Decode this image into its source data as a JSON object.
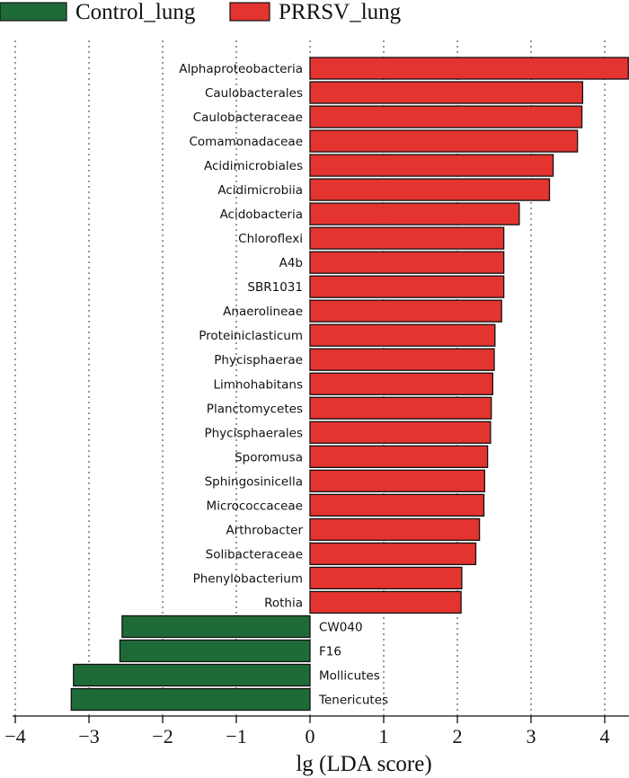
{
  "chart_data": {
    "type": "bar",
    "orientation": "horizontal",
    "title": "",
    "xlabel": "lg (LDA score)",
    "ylabel": "",
    "xlim": [
      -4,
      4.3
    ],
    "xticks": [
      -4,
      -3,
      -2,
      -1,
      0,
      1,
      2,
      3,
      4
    ],
    "xtick_labels": [
      "−4",
      "−3",
      "−2",
      "−1",
      "0",
      "1",
      "2",
      "3",
      "4"
    ],
    "grid": true,
    "legend_position": "top-left",
    "series": [
      {
        "name": "Control_lung",
        "color": "#1f6b38"
      },
      {
        "name": "PRRSV_lung",
        "color": "#e33430"
      }
    ],
    "categories": [
      "Alphaproteobacteria",
      "Caulobacterales",
      "Caulobacteraceae",
      "Comamonadaceae",
      "Acidimicrobiales",
      "Acidimicrobiia",
      "Acidobacteria",
      "Chloroflexi",
      "A4b",
      "SBR1031",
      "Anaerolineae",
      "Proteiniclasticum",
      "Phycisphaerae",
      "Limnohabitans",
      "Planctomycetes",
      "Phycisphaerales",
      "Sporomusa",
      "Sphingosinicella",
      "Micrococcaceae",
      "Arthrobacter",
      "Solibacteraceae",
      "Phenylobacterium",
      "Rothia",
      "CW040",
      "F16",
      "Mollicutes",
      "Tenericutes"
    ],
    "values": [
      4.32,
      3.7,
      3.69,
      3.63,
      3.3,
      3.25,
      2.84,
      2.63,
      2.63,
      2.63,
      2.6,
      2.51,
      2.5,
      2.48,
      2.46,
      2.45,
      2.41,
      2.37,
      2.36,
      2.3,
      2.25,
      2.06,
      2.05,
      -2.55,
      -2.58,
      -3.21,
      -3.24
    ],
    "groups": [
      "PRRSV_lung",
      "PRRSV_lung",
      "PRRSV_lung",
      "PRRSV_lung",
      "PRRSV_lung",
      "PRRSV_lung",
      "PRRSV_lung",
      "PRRSV_lung",
      "PRRSV_lung",
      "PRRSV_lung",
      "PRRSV_lung",
      "PRRSV_lung",
      "PRRSV_lung",
      "PRRSV_lung",
      "PRRSV_lung",
      "PRRSV_lung",
      "PRRSV_lung",
      "PRRSV_lung",
      "PRRSV_lung",
      "PRRSV_lung",
      "PRRSV_lung",
      "PRRSV_lung",
      "PRRSV_lung",
      "Control_lung",
      "Control_lung",
      "Control_lung",
      "Control_lung"
    ]
  }
}
